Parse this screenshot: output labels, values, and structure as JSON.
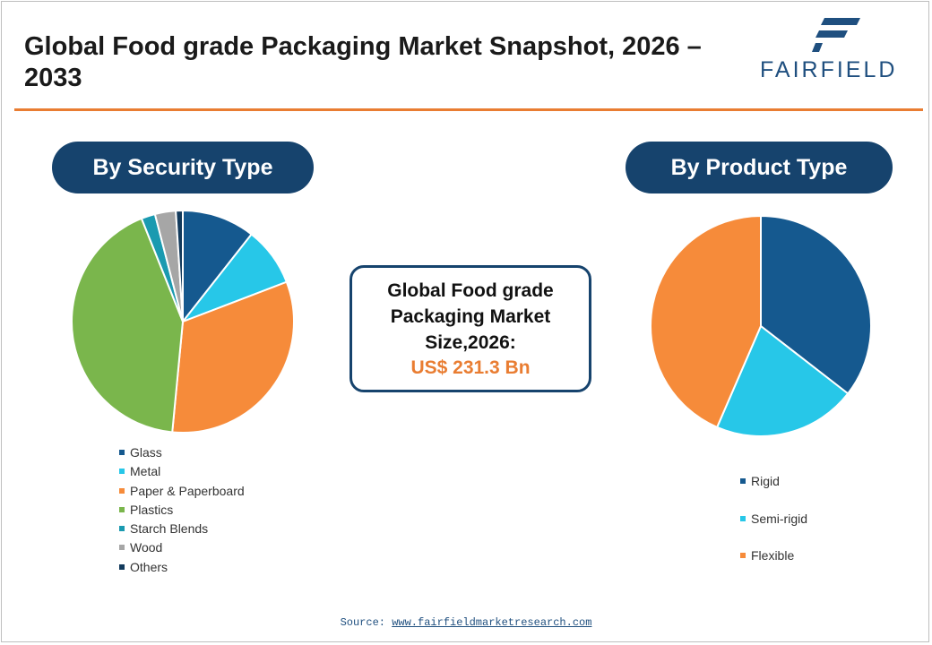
{
  "header": {
    "title": "Global Food grade Packaging Market Snapshot, 2026 – 2033",
    "logo_text": "FAIRFIELD"
  },
  "sections": {
    "left_title": "By Security Type",
    "right_title": "By Product Type"
  },
  "market_size": {
    "label": "Global Food grade Packaging Market Size,2026:",
    "value": "US$ 231.3 Bn"
  },
  "source": {
    "label": "Source:",
    "url_text": "www.fairfieldmarketresearch.com"
  },
  "colors": {
    "navy": "#16436d",
    "orange": "#e97d32"
  },
  "chart_data": [
    {
      "type": "pie",
      "title": "By Security Type",
      "start_angle_deg": 0,
      "categories": [
        "Glass",
        "Metal",
        "Paper & Paperboard",
        "Plastics",
        "Starch Blends",
        "Wood",
        "Others"
      ],
      "values": [
        10.5,
        8.5,
        32,
        42,
        2,
        3,
        1
      ],
      "colors": [
        "#15598f",
        "#27c7e8",
        "#f68b3a",
        "#7ab64c",
        "#1a9ab0",
        "#a6a6a6",
        "#123a5c"
      ],
      "legend_position": "bottom"
    },
    {
      "type": "pie",
      "title": "By Product Type",
      "start_angle_deg": 0,
      "categories": [
        "Rigid",
        "Semi-rigid",
        "Flexible"
      ],
      "values": [
        35.5,
        21,
        43.5
      ],
      "colors": [
        "#15598f",
        "#27c7e8",
        "#f68b3a"
      ],
      "legend_position": "bottom"
    }
  ]
}
